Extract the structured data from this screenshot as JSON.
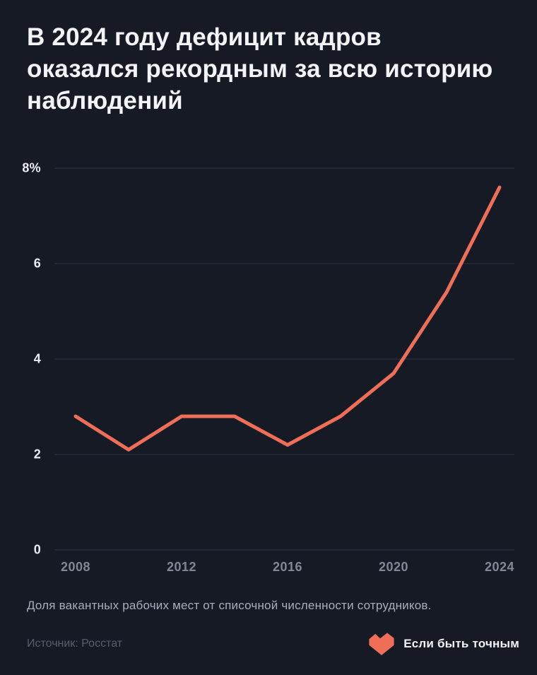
{
  "title_lines": [
    "В 2024 году дефицит кадров",
    "оказался рекордным за всю историю",
    "наблюдений"
  ],
  "caption": "Доля вакантных рабочих мест от списочной численности сотрудников.",
  "source": "Источник: Росстат",
  "brand": {
    "name": "Если быть точным",
    "logo_icon": "zigzag-heart-icon"
  },
  "colors": {
    "background": "#161a25",
    "title": "#f2f4f7",
    "line": "#ee6e58",
    "grid": "#303746",
    "y_label": "#e9ecf2",
    "x_label": "#808896",
    "caption": "#a7aebb",
    "source": "#575e6c",
    "logo": "#ee6e58"
  },
  "chart_data": {
    "type": "line",
    "title": "В 2024 году дефицит кадров оказался рекордным за всю историю наблюдений",
    "series_name": "Доля вакантных рабочих мест, %",
    "x": [
      2008,
      2010,
      2012,
      2014,
      2016,
      2018,
      2020,
      2022,
      2024
    ],
    "values": [
      2.8,
      2.1,
      2.8,
      2.8,
      2.2,
      2.8,
      3.7,
      5.4,
      7.6
    ],
    "xlabel": "",
    "ylabel": "",
    "ylim": [
      0,
      8
    ],
    "xlim": [
      2008,
      2024
    ],
    "y_ticks": [
      0,
      2,
      4,
      6,
      8
    ],
    "y_tick_labels": [
      "0",
      "2",
      "4",
      "6",
      "8%"
    ],
    "x_ticks": [
      2008,
      2012,
      2016,
      2020,
      2024
    ],
    "x_tick_labels": [
      "2008",
      "2012",
      "2016",
      "2020",
      "2024"
    ],
    "grid": true,
    "legend": false,
    "line_color": "#ee6e58"
  }
}
